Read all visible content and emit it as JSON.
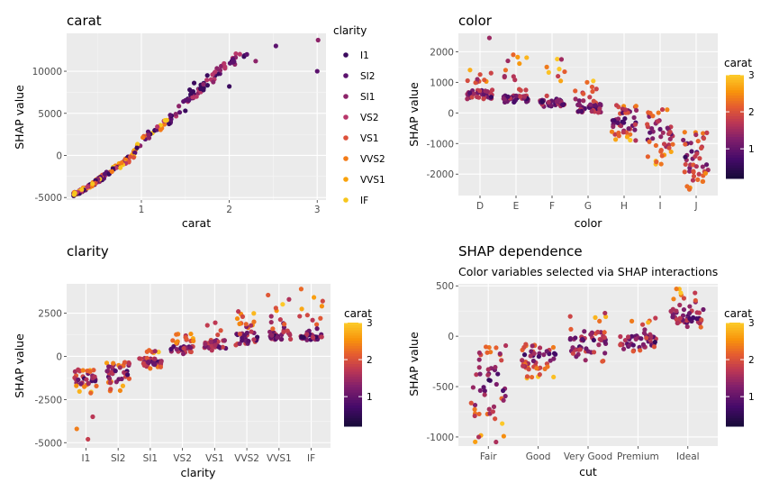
{
  "colors": {
    "panel_bg": "#ebebeb",
    "grid_major": "#ffffff",
    "tick_text": "#4d4d4d",
    "inferno_low": "#3b0a5e",
    "inferno_mid": "#b8366a",
    "inferno_high": "#fcb614"
  },
  "chart_data": [
    {
      "id": "carat",
      "type": "scatter",
      "title": "carat",
      "subtitle": "",
      "xlabel": "carat",
      "ylabel": "SHAP value",
      "xlim": [
        0.15,
        3.1
      ],
      "ylim": [
        -5300,
        14500
      ],
      "x_ticks": [
        1,
        2,
        3
      ],
      "x_tick_labels": [
        "1",
        "2",
        "3"
      ],
      "y_ticks": [
        -5000,
        0,
        5000,
        10000
      ],
      "y_tick_labels": [
        "-5000",
        "0",
        "5000",
        "10000"
      ],
      "color_by": "clarity",
      "legend": {
        "title": "clarity",
        "position": "right",
        "entries": [
          "I1",
          "SI2",
          "SI1",
          "VS2",
          "VS1",
          "VVS2",
          "VVS1",
          "IF"
        ],
        "colors": [
          "#3b0a5e",
          "#5c126e",
          "#8c2369",
          "#b8366a",
          "#dd513a",
          "#f37b17",
          "#f9a20b",
          "#f7c61c"
        ]
      },
      "curve": [
        [
          0.23,
          -4600
        ],
        [
          0.3,
          -4300
        ],
        [
          0.4,
          -3700
        ],
        [
          0.5,
          -3000
        ],
        [
          0.6,
          -2300
        ],
        [
          0.7,
          -1500
        ],
        [
          0.8,
          -900
        ],
        [
          0.9,
          -100
        ],
        [
          1.0,
          1800
        ],
        [
          1.1,
          2600
        ],
        [
          1.2,
          3200
        ],
        [
          1.3,
          4000
        ],
        [
          1.4,
          5200
        ],
        [
          1.5,
          6200
        ],
        [
          1.6,
          7200
        ],
        [
          1.7,
          8200
        ],
        [
          1.8,
          9200
        ],
        [
          1.9,
          10200
        ],
        [
          2.0,
          11000
        ],
        [
          2.1,
          11600
        ],
        [
          2.2,
          11400
        ]
      ],
      "outliers": [
        [
          2.0,
          8200
        ],
        [
          2.53,
          13000
        ],
        [
          3.01,
          13700
        ],
        [
          3.0,
          10000
        ],
        [
          2.2,
          12000
        ],
        [
          2.3,
          11200
        ],
        [
          1.5,
          5300
        ],
        [
          1.55,
          7800
        ],
        [
          1.6,
          8600
        ],
        [
          1.75,
          9500
        ]
      ],
      "n_points": 260
    },
    {
      "id": "color",
      "type": "strip",
      "title": "color",
      "subtitle": "",
      "xlabel": "color",
      "ylabel": "SHAP value",
      "categories": [
        "D",
        "E",
        "F",
        "G",
        "H",
        "I",
        "J"
      ],
      "ylim": [
        -2700,
        2600
      ],
      "y_ticks": [
        -2000,
        -1000,
        0,
        1000,
        2000
      ],
      "y_tick_labels": [
        "-2000",
        "-1000",
        "0",
        "1000",
        "2000"
      ],
      "color_by": "carat",
      "legend": {
        "title": "carat",
        "position": "right",
        "ticks": [
          1,
          2,
          3
        ],
        "tick_labels": [
          "1",
          "2",
          "3"
        ],
        "range": [
          0.2,
          3.0
        ]
      },
      "groups": [
        {
          "center": 600,
          "low": 350,
          "high": 1500,
          "extremes": [
            2450,
            1300,
            1100
          ]
        },
        {
          "center": 450,
          "low": 250,
          "high": 1950,
          "extremes": [
            1900,
            1700,
            1200
          ]
        },
        {
          "center": 320,
          "low": 150,
          "high": 1800,
          "extremes": [
            1750,
            1500,
            1200
          ]
        },
        {
          "center": 150,
          "low": -100,
          "high": 1050,
          "extremes": [
            1000,
            850,
            700
          ]
        },
        {
          "center": -200,
          "low": -950,
          "high": 300,
          "extremes": [
            -900,
            -750,
            250
          ]
        },
        {
          "center": -550,
          "low": -1700,
          "high": -100,
          "extremes": [
            -1600,
            -1400,
            -100
          ]
        },
        {
          "center": -1350,
          "low": -2550,
          "high": -600,
          "extremes": [
            -2500,
            -2400,
            -650
          ]
        }
      ]
    },
    {
      "id": "clarity",
      "type": "strip",
      "title": "clarity",
      "subtitle": "",
      "xlabel": "clarity",
      "ylabel": "SHAP value",
      "categories": [
        "I1",
        "SI2",
        "SI1",
        "VS2",
        "VS1",
        "VVS2",
        "VVS1",
        "IF"
      ],
      "ylim": [
        -5300,
        4200
      ],
      "y_ticks": [
        -5000,
        -2500,
        0,
        2500
      ],
      "y_tick_labels": [
        "-5000",
        "-2500",
        "0",
        "2500"
      ],
      "color_by": "carat",
      "legend": {
        "title": "carat",
        "position": "right",
        "ticks": [
          1,
          2,
          3
        ],
        "tick_labels": [
          "1",
          "2",
          "3"
        ],
        "range": [
          0.2,
          3.0
        ]
      },
      "groups": [
        {
          "center": -1300,
          "low": -2200,
          "high": -1000,
          "extremes": [
            -3500,
            -4200,
            -4800
          ]
        },
        {
          "center": -1000,
          "low": -2100,
          "high": -450,
          "extremes": [
            -2000,
            -1900,
            -400
          ]
        },
        {
          "center": -300,
          "low": -650,
          "high": 400,
          "extremes": [
            350,
            300,
            -700
          ]
        },
        {
          "center": 400,
          "low": 100,
          "high": 1300,
          "extremes": [
            1200,
            1100,
            1000
          ]
        },
        {
          "center": 700,
          "low": 300,
          "high": 1900,
          "extremes": [
            1950,
            1800,
            1500
          ]
        },
        {
          "center": 1100,
          "low": 650,
          "high": 2600,
          "extremes": [
            2600,
            2300,
            2000
          ]
        },
        {
          "center": 1200,
          "low": 800,
          "high": 3600,
          "extremes": [
            3550,
            3300,
            1600
          ]
        },
        {
          "center": 1100,
          "low": 800,
          "high": 3900,
          "extremes": [
            3900,
            3200,
            2100
          ]
        }
      ]
    },
    {
      "id": "cut",
      "type": "strip",
      "title": "SHAP dependence",
      "subtitle": "Color variables selected via SHAP interactions",
      "xlabel": "cut",
      "ylabel": "SHAP value",
      "categories": [
        "Fair",
        "Good",
        "Very Good",
        "Premium",
        "Ideal"
      ],
      "ylim": [
        -1090,
        520
      ],
      "y_ticks": [
        -1000,
        -500,
        0,
        500
      ],
      "y_tick_labels": [
        "-1000",
        "-500",
        "0",
        "500"
      ],
      "color_by": "carat",
      "legend": {
        "title": "carat",
        "position": "right",
        "ticks": [
          1,
          2,
          3
        ],
        "tick_labels": [
          "1",
          "2",
          "3"
        ],
        "range": [
          0.2,
          3.0
        ]
      },
      "groups": [
        {
          "center": -450,
          "low": -1050,
          "high": -230,
          "extremes": [
            -1050,
            -1000,
            -700
          ]
        },
        {
          "center": -200,
          "low": -420,
          "high": -100,
          "extremes": [
            -400,
            -380,
            -110
          ]
        },
        {
          "center": -60,
          "low": -250,
          "high": 230,
          "extremes": [
            230,
            150,
            -250
          ]
        },
        {
          "center": -50,
          "low": -150,
          "high": 180,
          "extremes": [
            180,
            150,
            -140
          ]
        },
        {
          "center": 200,
          "low": 80,
          "high": 470,
          "extremes": [
            470,
            430,
            90
          ]
        }
      ]
    }
  ]
}
